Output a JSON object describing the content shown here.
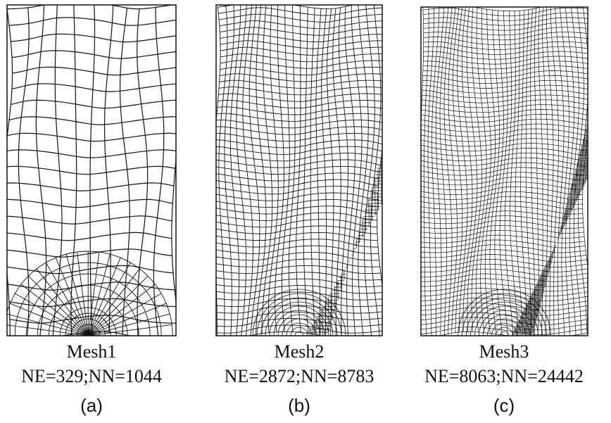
{
  "panels": [
    {
      "title": "Mesh1",
      "stats": "NE=329;NN=1044",
      "label": "(a)"
    },
    {
      "title": "Mesh2",
      "stats": "NE=2872;NN=8783",
      "label": "(b)"
    },
    {
      "title": "Mesh3",
      "stats": "NE=8063;NN=24442",
      "label": "(c)"
    }
  ]
}
